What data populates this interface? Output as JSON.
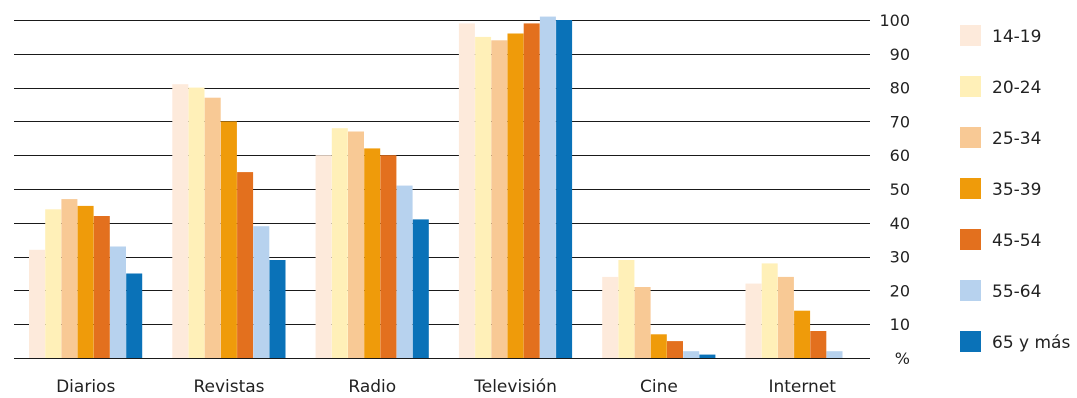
{
  "chart_data": {
    "type": "bar",
    "categories": [
      "Diarios",
      "Revistas",
      "Radio",
      "Televisión",
      "Cine",
      "Internet"
    ],
    "series": [
      {
        "name": "14-19",
        "color": "#fdeadb",
        "values": [
          32,
          81,
          60,
          99,
          24,
          22
        ]
      },
      {
        "name": "20-24",
        "color": "#fff0b8",
        "values": [
          44,
          80,
          68,
          95,
          29,
          28
        ]
      },
      {
        "name": "25-34",
        "color": "#f8c995",
        "values": [
          47,
          77,
          67,
          94,
          21,
          24
        ]
      },
      {
        "name": "35-39",
        "color": "#ef9b0a",
        "values": [
          45,
          70,
          62,
          96,
          7,
          14
        ]
      },
      {
        "name": "45-54",
        "color": "#e3701e",
        "values": [
          42,
          55,
          60,
          99,
          5,
          8
        ]
      },
      {
        "name": "55-64",
        "color": "#b7d2ee",
        "values": [
          33,
          39,
          51,
          101,
          2,
          2
        ]
      },
      {
        "name": "65 y más",
        "color": "#0a72b8",
        "values": [
          25,
          29,
          41,
          100,
          1,
          0
        ]
      }
    ],
    "y_ticks": [
      "%",
      "10",
      "20",
      "30",
      "40",
      "50",
      "60",
      "70",
      "80",
      "90",
      "100"
    ],
    "ylim": [
      0,
      100
    ],
    "axis_position": "right",
    "grid": true,
    "legend": "right",
    "title": "",
    "xlabel": "",
    "ylabel": ""
  }
}
